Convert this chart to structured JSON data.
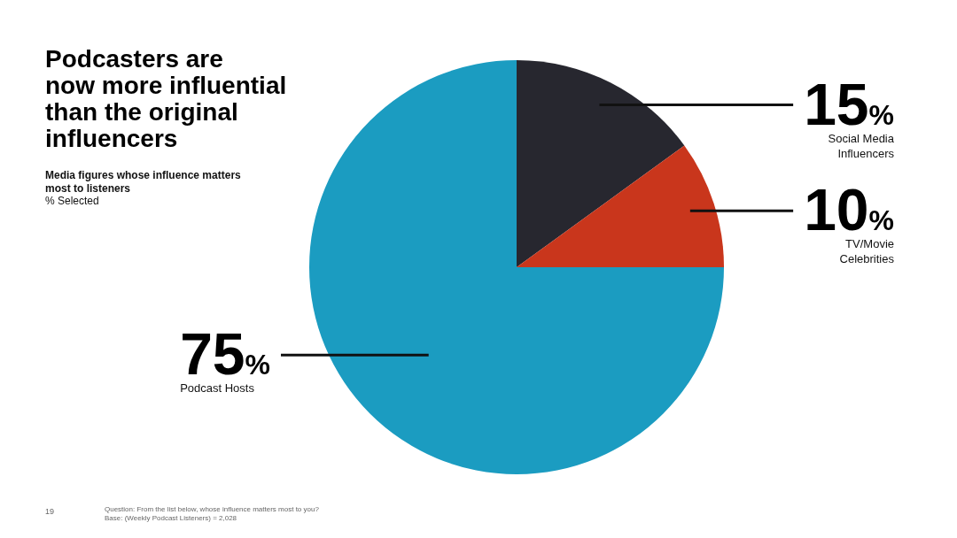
{
  "chart_data": {
    "type": "pie",
    "title": "Podcasters are\nnow more influential\nthan the original\ninfluencers",
    "subtitle": "Media figures whose influence matters most to listeners",
    "categories": [
      "Social Media Influencers",
      "TV/Movie Celebrities",
      "Podcast Hosts"
    ],
    "values": [
      15,
      10,
      75
    ],
    "colors": [
      "#27272f",
      "#c9361c",
      "#1b9cc1"
    ],
    "value_labels": [
      "15%",
      "10%",
      "75%"
    ],
    "annotations": [
      "% Selected",
      "19",
      "Question: From the list below, whose influence matters most to you?",
      "Base: (Weekly Podcast Listeners) = 2,028"
    ]
  }
}
